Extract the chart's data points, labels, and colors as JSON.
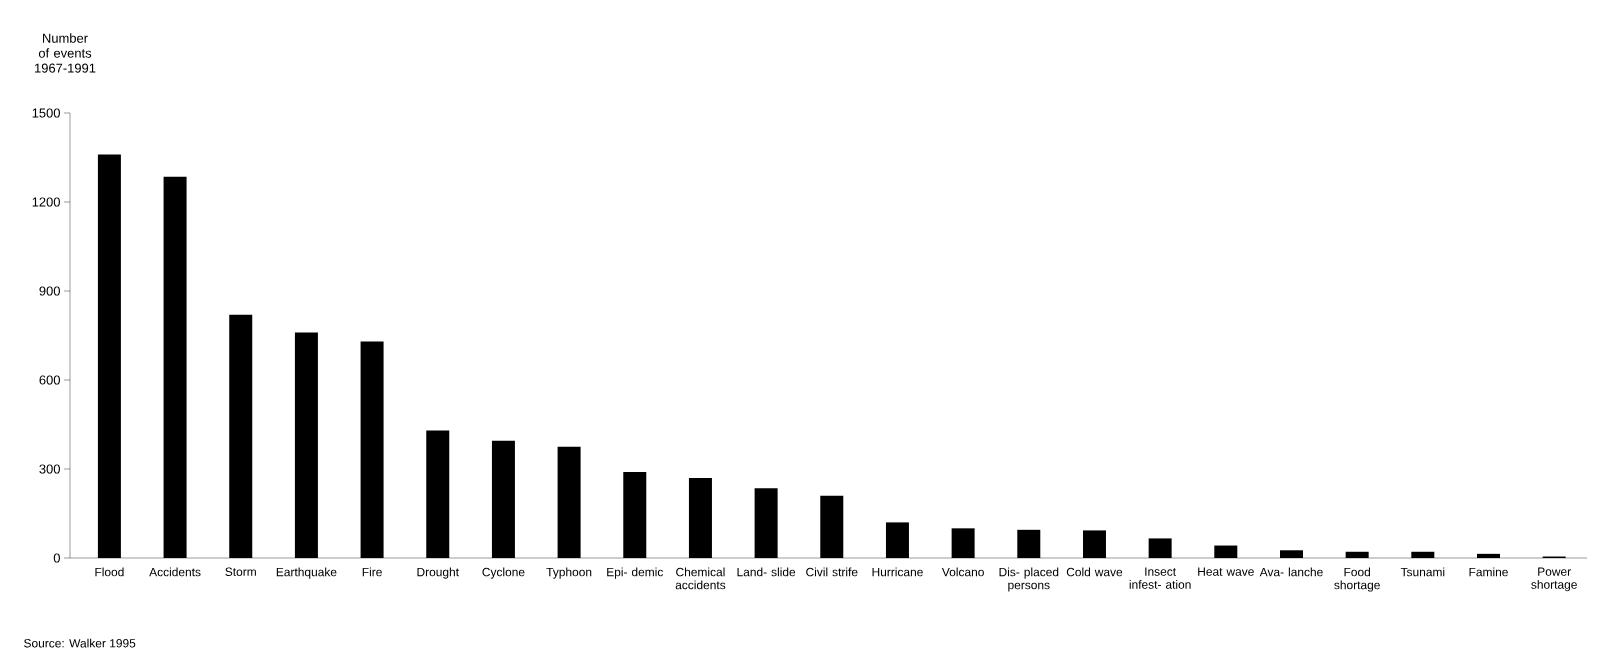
{
  "chart_data": {
    "type": "bar",
    "ylabel": "Number of events 1967-1991",
    "categories": [
      "Flood",
      "Accidents",
      "Storm",
      "Earthquake",
      "Fire",
      "Drought",
      "Cyclone",
      "Typhoon",
      "Epi- demic",
      "Chemical accidents",
      "Land- slide",
      "Civil strife",
      "Hurricane",
      "Volcano",
      "Dis- placed persons",
      "Cold wave",
      "Insect infest- ation",
      "Heat wave",
      "Ava- lanche",
      "Food shortage",
      "Tsunami",
      "Famine",
      "Power shortage"
    ],
    "values": [
      1360,
      1285,
      820,
      760,
      730,
      430,
      395,
      375,
      290,
      270,
      235,
      210,
      120,
      100,
      95,
      93,
      66,
      42,
      26,
      21,
      21,
      14,
      5
    ],
    "color": "#000000",
    "ylim": [
      0,
      1500
    ],
    "yticks": [
      0,
      300,
      600,
      900,
      1200,
      1500
    ],
    "annotations": [
      "Source: Walker 1995"
    ]
  }
}
